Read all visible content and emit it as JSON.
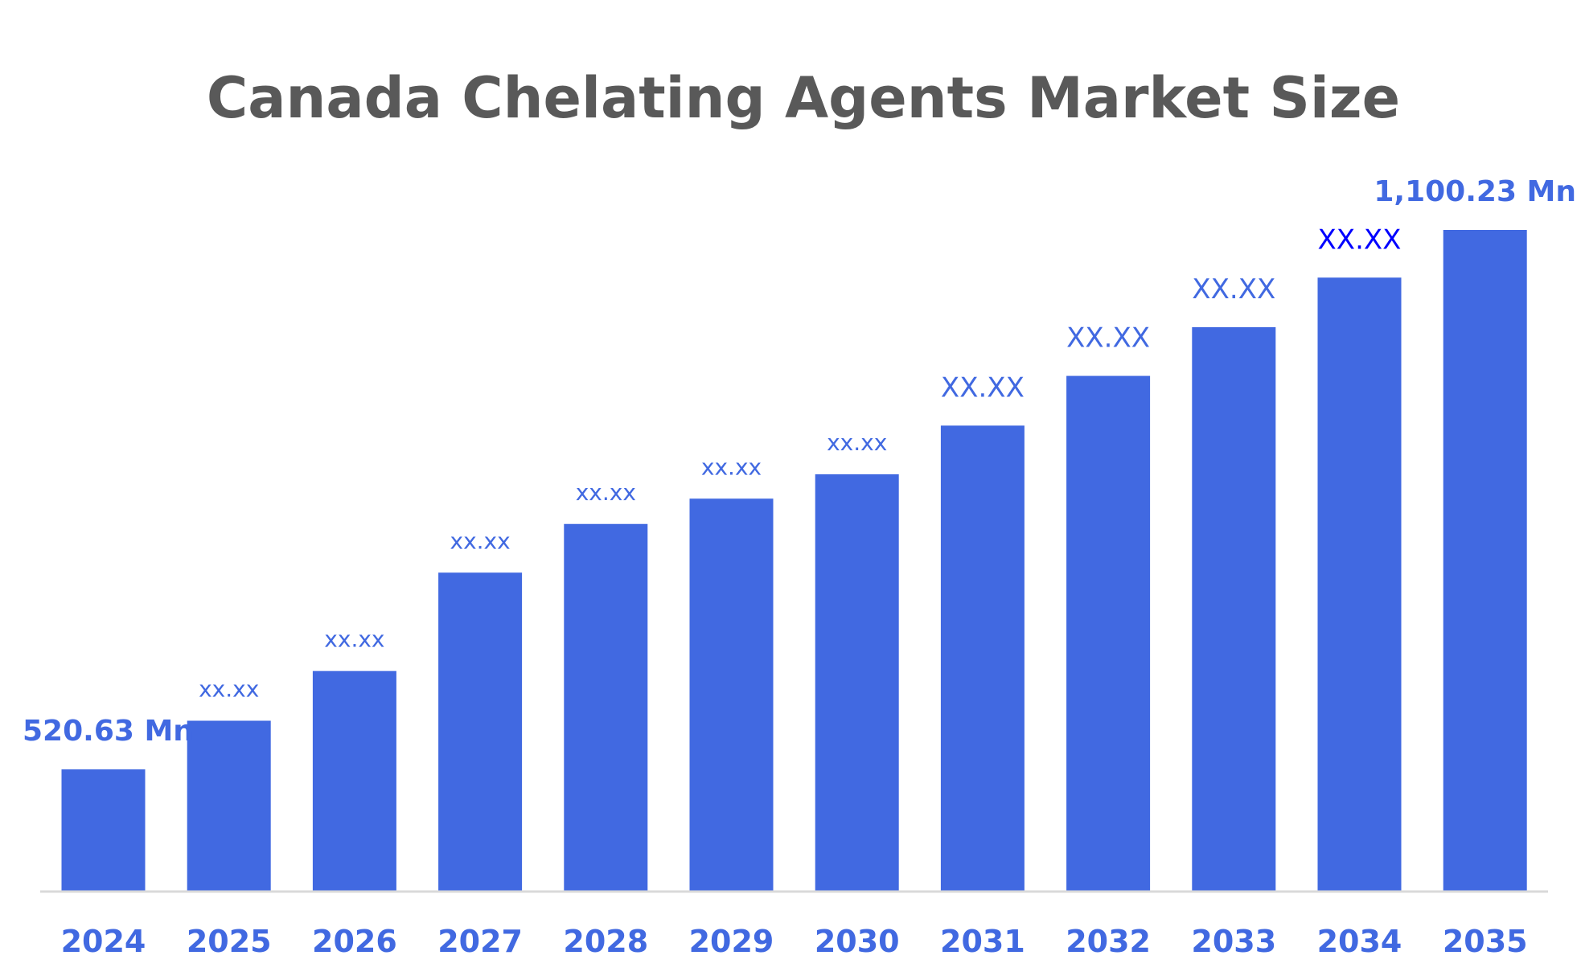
{
  "chart_data": {
    "type": "bar",
    "title": "Canada Chelating Agents Market Size",
    "xlabel": "",
    "ylabel": "",
    "categories": [
      "2024",
      "2025",
      "2026",
      "2027",
      "2028",
      "2029",
      "2030",
      "2031",
      "2032",
      "2033",
      "2034",
      "2035"
    ],
    "values": [
      520.63,
      572.9,
      626.3,
      732.0,
      784.3,
      811.5,
      837.7,
      890.0,
      943.4,
      995.7,
      1049.0,
      1100.23
    ],
    "data_labels": [
      "520.63 Mn",
      "xx.xx",
      "xx.xx",
      "xx.xx",
      "xx.xx",
      "xx.xx",
      "xx.xx",
      "XX.XX",
      "XX.XX",
      "XX.XX",
      "XX.XX",
      "1,100.23 Mn"
    ],
    "ylim": [
      389,
      1100.23
    ],
    "grid": false,
    "legend": "none",
    "colors": {
      "bar": "#4169E1",
      "label": "#4169E1",
      "label_highlight": "#0000FF",
      "title": "#595959",
      "axis": "#D9D9D9"
    }
  }
}
